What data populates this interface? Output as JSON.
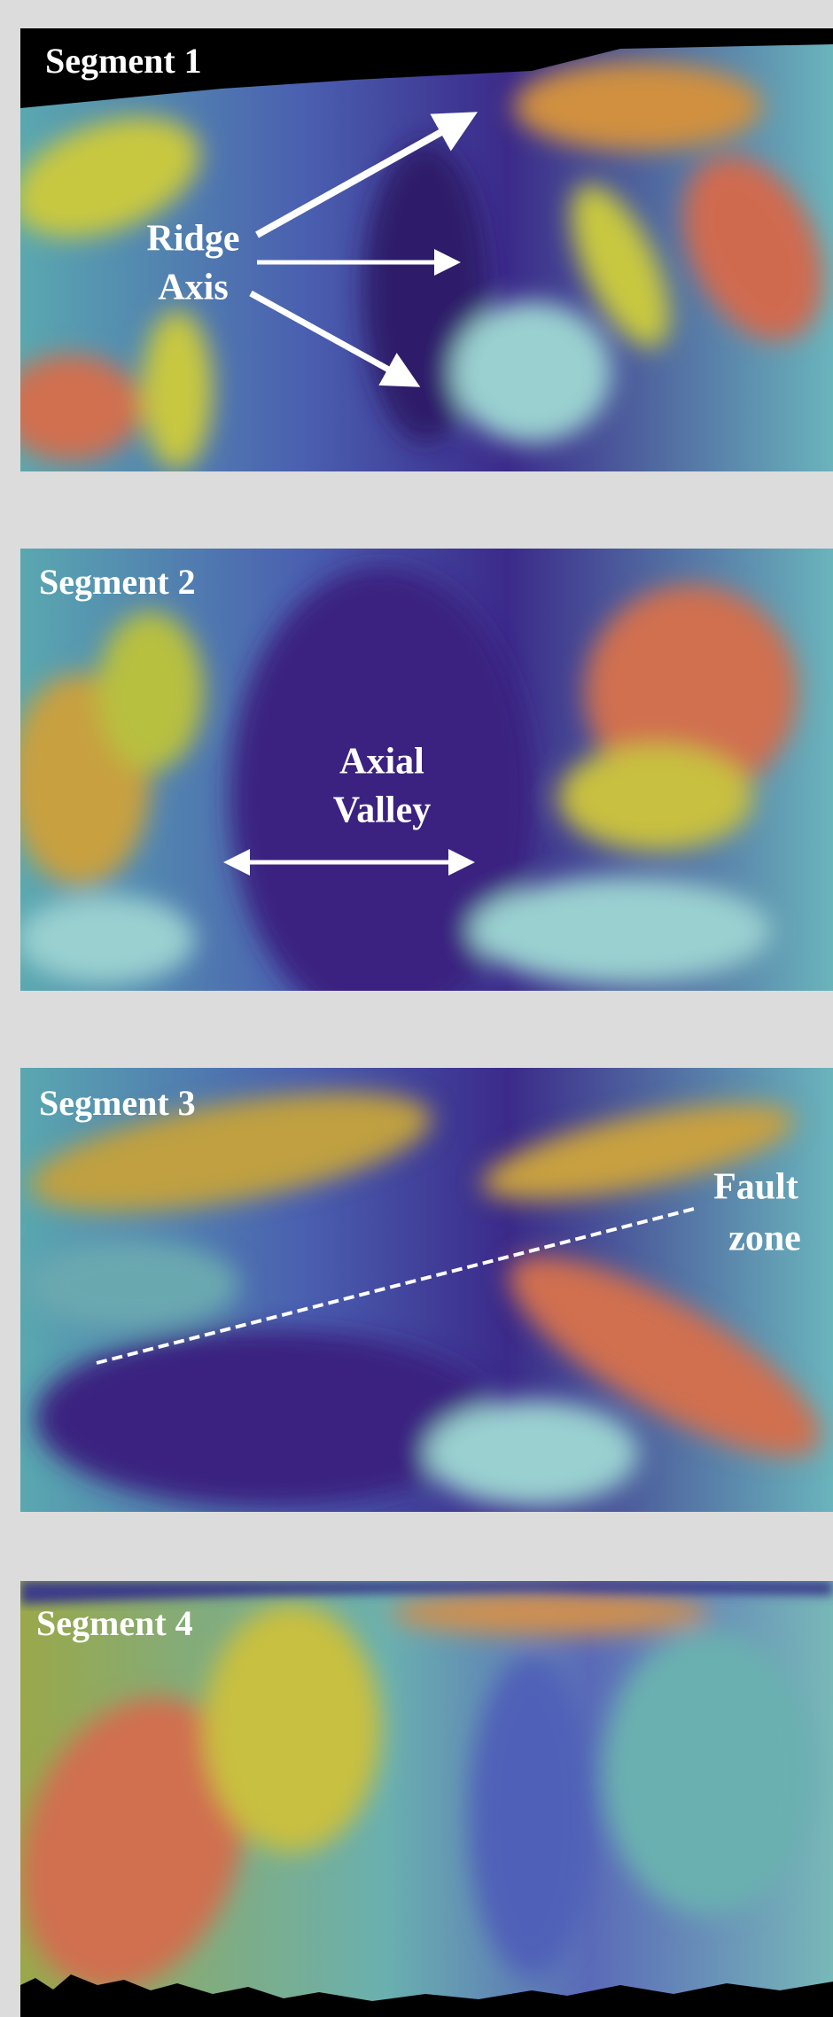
{
  "panels": [
    {
      "label": "Segment 1",
      "annotation": [
        "Ridge",
        "Axis"
      ]
    },
    {
      "label": "Segment 2",
      "annotation": [
        "Axial",
        "Valley"
      ]
    },
    {
      "label": "Segment 3",
      "annotation": [
        "Fault",
        "zone"
      ]
    },
    {
      "label": "Segment 4"
    }
  ]
}
